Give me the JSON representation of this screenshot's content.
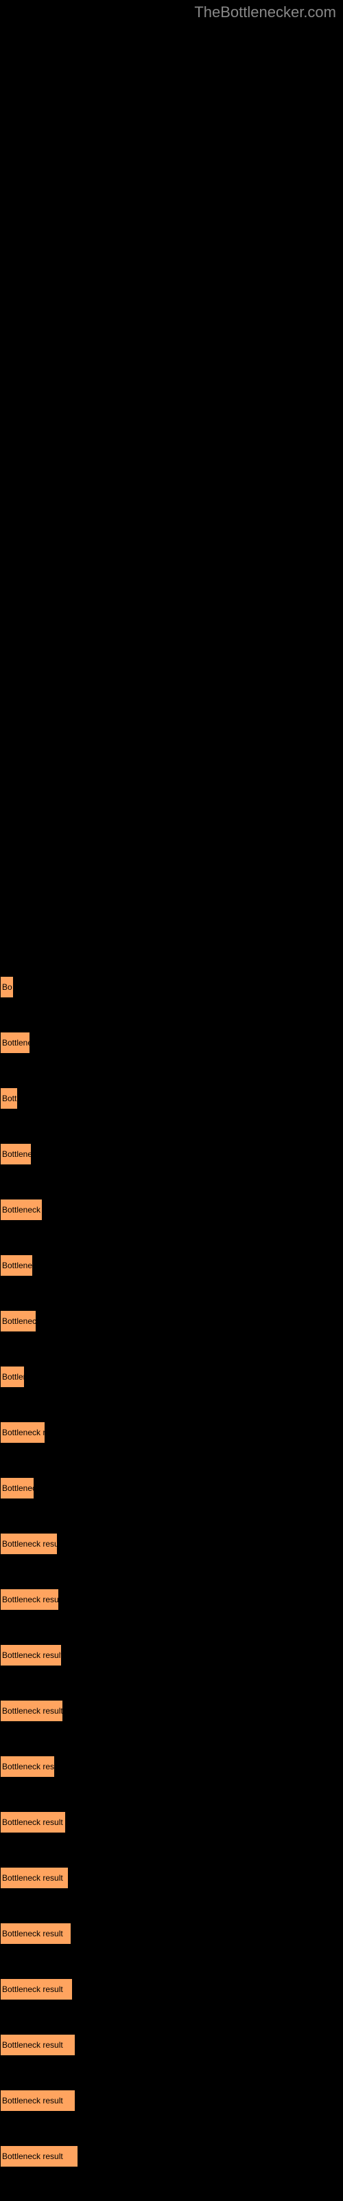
{
  "watermark": "TheBottlenecker.com",
  "chart": {
    "type": "bar",
    "bar_color": "#ffa45f",
    "background_color": "#000000",
    "text_color": "#000000",
    "border_color": "#000000",
    "label_fontsize": 12,
    "bars": [
      {
        "width": 20,
        "label": "Bo"
      },
      {
        "width": 44,
        "label": "Bottlene"
      },
      {
        "width": 26,
        "label": "Bott"
      },
      {
        "width": 46,
        "label": "Bottlene"
      },
      {
        "width": 62,
        "label": "Bottleneck r"
      },
      {
        "width": 48,
        "label": "Bottlene"
      },
      {
        "width": 53,
        "label": "Bottleneck"
      },
      {
        "width": 36,
        "label": "Bottler"
      },
      {
        "width": 66,
        "label": "Bottleneck re"
      },
      {
        "width": 50,
        "label": "Bottlenec"
      },
      {
        "width": 84,
        "label": "Bottleneck result"
      },
      {
        "width": 86,
        "label": "Bottleneck result"
      },
      {
        "width": 90,
        "label": "Bottleneck result"
      },
      {
        "width": 92,
        "label": "Bottleneck result"
      },
      {
        "width": 80,
        "label": "Bottleneck resu"
      },
      {
        "width": 96,
        "label": "Bottleneck result"
      },
      {
        "width": 100,
        "label": "Bottleneck result"
      },
      {
        "width": 104,
        "label": "Bottleneck result"
      },
      {
        "width": 106,
        "label": "Bottleneck result"
      },
      {
        "width": 110,
        "label": "Bottleneck result"
      },
      {
        "width": 110,
        "label": "Bottleneck result"
      },
      {
        "width": 114,
        "label": "Bottleneck result"
      }
    ]
  }
}
